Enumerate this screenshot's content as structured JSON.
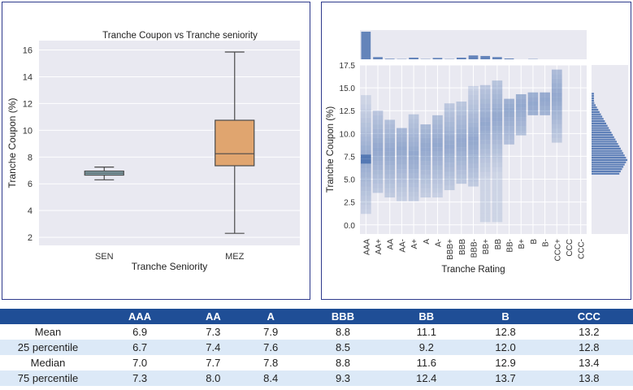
{
  "colors": {
    "plot_bg": "#e9e9f1",
    "grid": "#ffffff",
    "sen_box": "#8db4bf",
    "mez_box": "#e0a56f",
    "hist": "#4c72b0",
    "table_header": "#1f4e96",
    "table_stripe": "#dce9f7",
    "panel_border": "#2e3a8c"
  },
  "chart_data": [
    {
      "type": "box",
      "title": "Tranche Coupon vs Tranche seniority",
      "xlabel": "Tranche Seniority",
      "ylabel": "Tranche Coupon (%)",
      "categories": [
        "SEN",
        "MEZ"
      ],
      "boxes": [
        {
          "name": "SEN",
          "min": 6.3,
          "q1": 6.65,
          "median": 6.8,
          "q3": 6.95,
          "max": 7.25
        },
        {
          "name": "MEZ",
          "min": 2.3,
          "q1": 7.35,
          "median": 8.25,
          "q3": 10.75,
          "max": 15.85
        }
      ],
      "ylim": [
        1.4,
        16.7
      ],
      "yticks": [
        "2",
        "4",
        "6",
        "8",
        "10",
        "12",
        "14",
        "16"
      ],
      "grid": true
    },
    {
      "type": "heatmap",
      "xlabel": "Tranche Rating",
      "ylabel": "Tranche Coupon (%)",
      "categories": [
        "AAA",
        "AA+",
        "AA",
        "AA-",
        "A+",
        "A",
        "A-",
        "BBB+",
        "BBB",
        "BBB-",
        "BB+",
        "BB",
        "BB-",
        "B+",
        "B",
        "B-",
        "CCC+",
        "CCC",
        "CCC-"
      ],
      "yticks": [
        "0.0",
        "2.5",
        "5.0",
        "7.5",
        "10.0",
        "12.5",
        "15.0",
        "17.5"
      ],
      "ylim": [
        -1.0,
        17.5
      ],
      "coupon_ranges": [
        {
          "rating": "AAA",
          "low": 1.2,
          "high": 14.0,
          "peak": 7.0
        },
        {
          "rating": "AA+",
          "low": 3.5,
          "high": 12.2,
          "peak": 8.0
        },
        {
          "rating": "AA",
          "low": 3.0,
          "high": 11.5,
          "peak": 7.8
        },
        {
          "rating": "AA-",
          "low": 2.6,
          "high": 10.5,
          "peak": 8.0
        },
        {
          "rating": "A+",
          "low": 2.6,
          "high": 12.0,
          "peak": 7.5
        },
        {
          "rating": "A",
          "low": 3.0,
          "high": 10.8,
          "peak": 8.2
        },
        {
          "rating": "A-",
          "low": 3.0,
          "high": 12.0,
          "peak": 8.5
        },
        {
          "rating": "BBB+",
          "low": 3.8,
          "high": 13.0,
          "peak": 8.5
        },
        {
          "rating": "BBB",
          "low": 4.5,
          "high": 13.5,
          "peak": 8.8
        },
        {
          "rating": "BBB-",
          "low": 4.2,
          "high": 15.0,
          "peak": 9.0
        },
        {
          "rating": "BB+",
          "low": 0.3,
          "high": 15.3,
          "peak": 10.8
        },
        {
          "rating": "BB",
          "low": 0.3,
          "high": 15.8,
          "peak": 11.5
        },
        {
          "rating": "BB-",
          "low": 8.8,
          "high": 13.5,
          "peak": 12.2
        },
        {
          "rating": "B+",
          "low": 9.8,
          "high": 14.0,
          "peak": 12.8
        },
        {
          "rating": "B",
          "low": 12.0,
          "high": 14.3,
          "peak": 13.0
        },
        {
          "rating": "B-",
          "low": 12.0,
          "high": 14.5,
          "peak": 13.5
        },
        {
          "rating": "CCC+",
          "low": 9.0,
          "high": 17.0,
          "peak": 13.8
        },
        {
          "rating": "CCC",
          "low": 0,
          "high": 0,
          "peak": 0
        },
        {
          "rating": "CCC-",
          "low": 0,
          "high": 0,
          "peak": 0
        }
      ],
      "marginal_counts": [
        100,
        8,
        2,
        1,
        6,
        1,
        5,
        1,
        6,
        14,
        12,
        8,
        3,
        0,
        1,
        0,
        0,
        0,
        0
      ]
    }
  ],
  "table": {
    "headers": [
      "",
      "AAA",
      "AA",
      "A",
      "BBB",
      "BB",
      "B",
      "CCC"
    ],
    "rows": [
      [
        "Mean",
        "6.9",
        "7.3",
        "7.9",
        "8.8",
        "11.1",
        "12.8",
        "13.2"
      ],
      [
        "25 percentile",
        "6.7",
        "7.4",
        "7.6",
        "8.5",
        "9.2",
        "12.0",
        "12.8"
      ],
      [
        "Median",
        "7.0",
        "7.7",
        "7.8",
        "8.8",
        "11.6",
        "12.9",
        "13.4"
      ],
      [
        "75 percentile",
        "7.3",
        "8.0",
        "8.4",
        "9.3",
        "12.4",
        "13.7",
        "13.8"
      ]
    ]
  }
}
